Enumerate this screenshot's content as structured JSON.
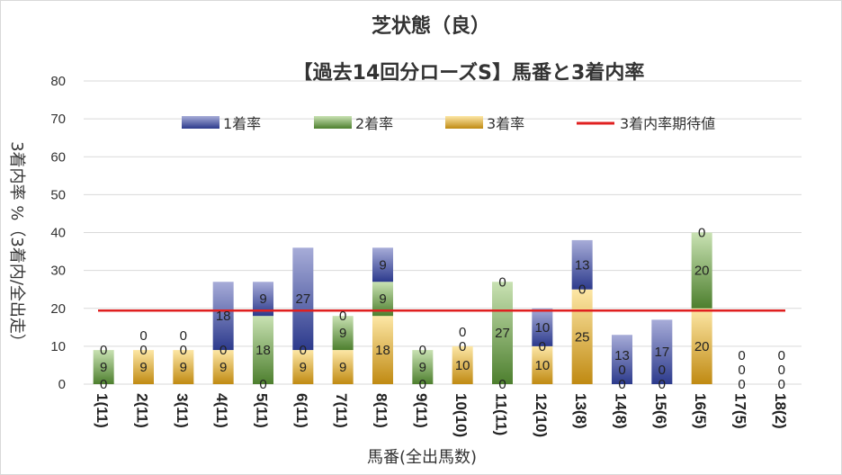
{
  "chart_data": {
    "type": "bar",
    "title": "芝状態（良）",
    "subtitle": "【過去14回分ローズS】馬番と3着内率",
    "xlabel": "馬番(全出馬数)",
    "ylabel": "3着内率 %（3着内/全出走）",
    "ylim": [
      0,
      80
    ],
    "yticks": [
      0,
      10,
      20,
      30,
      40,
      50,
      60,
      70,
      80
    ],
    "grid": true,
    "legend_position": "top",
    "categories": [
      "1(11)",
      "2(11)",
      "3(11)",
      "4(11)",
      "5(11)",
      "6(11)",
      "7(11)",
      "8(11)",
      "9(11)",
      "10(10)",
      "11(11)",
      "12(10)",
      "13(8)",
      "14(8)",
      "15(6)",
      "16(5)",
      "17(5)",
      "18(2)"
    ],
    "series": [
      {
        "name": "3着率",
        "values": [
          0,
          9,
          9,
          9,
          0,
          9,
          9,
          18,
          0,
          10,
          0,
          10,
          25,
          0,
          0,
          20,
          0,
          0
        ],
        "color": "#c8961e"
      },
      {
        "name": "2着率",
        "values": [
          9,
          0,
          0,
          0,
          18,
          0,
          9,
          9,
          9,
          0,
          27,
          0,
          0,
          0,
          0,
          20,
          0,
          0
        ],
        "color": "#5e8f3a"
      },
      {
        "name": "1着率",
        "values": [
          0,
          0,
          0,
          18,
          9,
          27,
          0,
          9,
          0,
          0,
          0,
          10,
          13,
          13,
          17,
          0,
          0,
          0
        ],
        "color": "#3b4b9b"
      }
    ],
    "label_order": [
      "3着率",
      "2着率",
      "1着率"
    ],
    "reference_line": {
      "name": "3着内率期待値",
      "value": 19.4,
      "color": "#e02020"
    },
    "legend_order": [
      "1着率",
      "2着率",
      "3着率",
      "3着内率期待値"
    ]
  }
}
